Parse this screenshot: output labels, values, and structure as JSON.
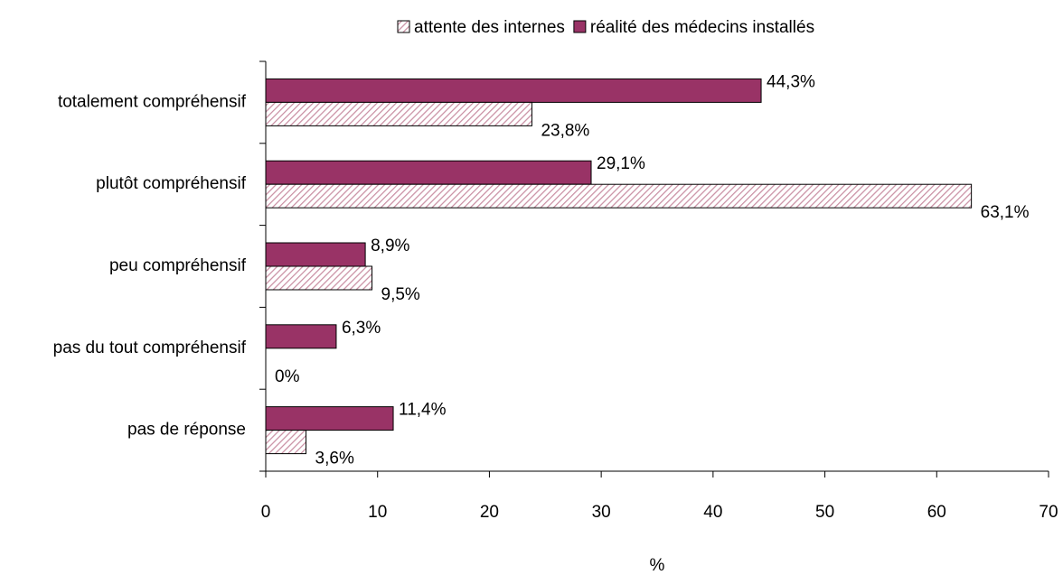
{
  "chart_data": {
    "type": "hbar",
    "categories": [
      "totalement compréhensif",
      "plutôt compréhensif",
      "peu compréhensif",
      "pas du tout compréhensif",
      "pas de réponse"
    ],
    "series": [
      {
        "name": "attente des internes",
        "color": "#c98fa3",
        "pattern": "hatch",
        "values": [
          23.8,
          63.1,
          9.5,
          0,
          3.6
        ],
        "value_labels": [
          "23,8%",
          "63,1%",
          "9,5%",
          "0%",
          "3,6%"
        ]
      },
      {
        "name": "réalité des médecins installés",
        "color": "#993366",
        "pattern": "solid",
        "values": [
          44.3,
          29.1,
          8.9,
          6.3,
          11.4
        ],
        "value_labels": [
          "44,3%",
          "29,1%",
          "8,9%",
          "6,3%",
          "11,4%"
        ]
      }
    ],
    "xlabel": "%",
    "xlim": [
      0,
      70
    ],
    "xticks": [
      0,
      10,
      20,
      30,
      40,
      50,
      60,
      70
    ],
    "legend": "top"
  }
}
